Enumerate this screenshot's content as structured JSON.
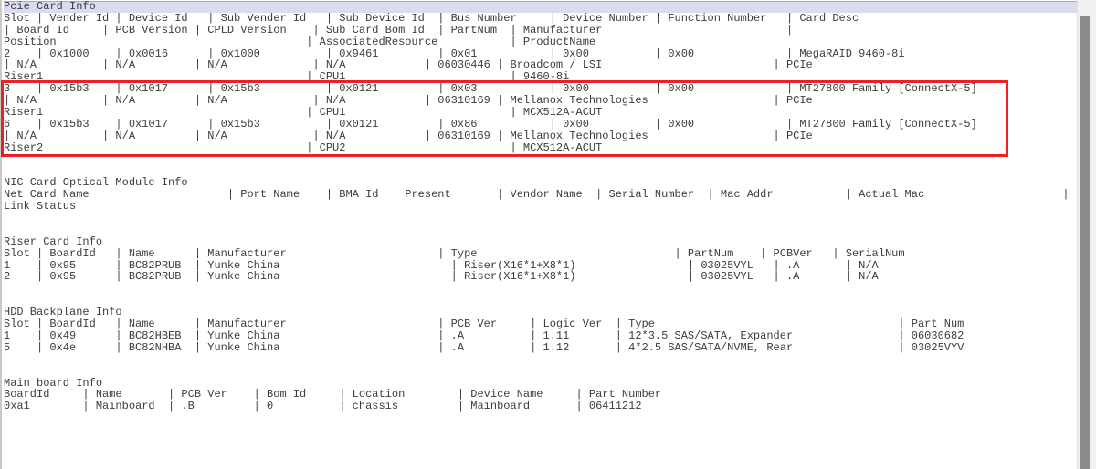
{
  "app": {
    "type": "terminal-hardware-inventory-output"
  },
  "colors": {
    "background": "#ffffff",
    "text": "#3c3c3c",
    "selection_highlight": "#dcdcf0",
    "selection_top_edge": "#a6a6c6",
    "annotation_red": "#ee2024",
    "scrollbar_track": "#f1f1f1",
    "scrollbar_thumb": "#8a8a8a",
    "border": "#c9c9c9"
  },
  "terminal": {
    "lines": [
      {
        "text": "Pcie Card Info",
        "highlighted": true
      },
      {
        "text": "Slot | Vender Id | Device Id   | Sub Vender Id   | Sub Device Id  | Bus Number     | Device Number | Function Number   | Card Desc"
      },
      {
        "text": "| Board Id     | PCB Version | CPLD Version    | Sub Card Bom Id  | PartNum  | Manufacturer                            |"
      },
      {
        "text": "Position                                      | AssociatedResource           | ProductName"
      },
      {
        "text": "2    | 0x1000    | 0x0016      | 0x1000          | 0x9461         | 0x01           | 0x00          | 0x00              | MegaRAID 9460-8i"
      },
      {
        "text": "| N/A          | N/A         | N/A             | N/A            | 06030446 | Broadcom / LSI                          | PCIe"
      },
      {
        "text": "Riser1                                        | CPU1                         | 9460-8i"
      },
      {
        "text": "3    | 0x15b3    | 0x1017      | 0x15b3          | 0x0121         | 0x03           | 0x00          | 0x00              | MT27800 Family [ConnectX-5]"
      },
      {
        "text": "| N/A          | N/A         | N/A             | N/A            | 06310169 | Mellanox Technologies                   | PCIe"
      },
      {
        "text": "Riser1                                        | CPU1                         | MCX512A-ACUT"
      },
      {
        "text": "6    | 0x15b3    | 0x1017      | 0x15b3          | 0x0121         | 0x86           | 0x00          | 0x00              | MT27800 Family [ConnectX-5]"
      },
      {
        "text": "| N/A          | N/A         | N/A             | N/A            | 06310169 | Mellanox Technologies                   | PCIe"
      },
      {
        "text": "Riser2                                        | CPU2                         | MCX512A-ACUT"
      },
      {
        "text": ""
      },
      {
        "text": ""
      },
      {
        "text": "NIC Card Optical Module Info"
      },
      {
        "text": "Net Card Name                     | Port Name    | BMA Id  | Present       | Vendor Name  | Serial Number  | Mac Addr           | Actual Mac                     |"
      },
      {
        "text": "Link Status"
      },
      {
        "text": ""
      },
      {
        "text": ""
      },
      {
        "text": "Riser Card Info"
      },
      {
        "text": "Slot | BoardId   | Name      | Manufacturer                       | Type                              | PartNum    | PCBVer   | SerialNum"
      },
      {
        "text": "1    | 0x95      | BC82PRUB  | Yunke China                          | Riser(X16*1+X8*1)                 | 03025VYL   | .A       | N/A"
      },
      {
        "text": "2    | 0x95      | BC82PRUB  | Yunke China                          | Riser(X16*1+X8*1)                 | 03025VYL   | .A       | N/A"
      },
      {
        "text": ""
      },
      {
        "text": ""
      },
      {
        "text": "HDD Backplane Info"
      },
      {
        "text": "Slot | BoardId   | Name      | Manufacturer                       | PCB Ver     | Logic Ver  | Type                                     | Part Num"
      },
      {
        "text": "1    | 0x49      | BC82HBEB  | Yunke China                        | .A          | 1.11       | 12*3.5 SAS/SATA, Expander                | 06030682"
      },
      {
        "text": "5    | 0x4e      | BC82NHBA  | Yunke China                        | .A          | 1.12       | 4*2.5 SAS/SATA/NVME, Rear                | 03025VYV"
      },
      {
        "text": ""
      },
      {
        "text": ""
      },
      {
        "text": "Main board Info"
      },
      {
        "text": "BoardId     | Name       | PCB Ver    | Bom Id     | Location        | Device Name     | Part Number"
      },
      {
        "text": "0xa1        | Mainboard  | .B         | 0          | chassis         | Mainboard       | 06411212"
      }
    ]
  },
  "tables": {
    "pcie_card_info": {
      "title": "Pcie Card Info",
      "header_rows": [
        [
          "Slot",
          "Vender Id",
          "Device Id",
          "Sub Vender Id",
          "Sub Device Id",
          "Bus Number",
          "Device Number",
          "Function Number",
          "Card Desc"
        ],
        [
          "Board Id",
          "PCB Version",
          "CPLD Version",
          "Sub Card Bom Id",
          "PartNum",
          "Manufacturer"
        ],
        [
          "Position",
          "AssociatedResource",
          "ProductName"
        ]
      ],
      "cards": [
        {
          "slot": "2",
          "vender_id": "0x1000",
          "device_id": "0x0016",
          "sub_vender_id": "0x1000",
          "sub_device_id": "0x9461",
          "bus_number": "0x01",
          "device_number": "0x00",
          "function_number": "0x00",
          "card_desc": "MegaRAID 9460-8i",
          "board_id": "N/A",
          "pcb_version": "N/A",
          "cpld_version": "N/A",
          "sub_card_bom_id": "N/A",
          "partnum": "06030446",
          "manufacturer": "Broadcom / LSI",
          "bus_type": "PCIe",
          "position": "Riser1",
          "associated_resource": "CPU1",
          "product_name": "9460-8i",
          "in_red_box": false
        },
        {
          "slot": "3",
          "vender_id": "0x15b3",
          "device_id": "0x1017",
          "sub_vender_id": "0x15b3",
          "sub_device_id": "0x0121",
          "bus_number": "0x03",
          "device_number": "0x00",
          "function_number": "0x00",
          "card_desc": "MT27800 Family [ConnectX-5]",
          "board_id": "N/A",
          "pcb_version": "N/A",
          "cpld_version": "N/A",
          "sub_card_bom_id": "N/A",
          "partnum": "06310169",
          "manufacturer": "Mellanox Technologies",
          "bus_type": "PCIe",
          "position": "Riser1",
          "associated_resource": "CPU1",
          "product_name": "MCX512A-ACUT",
          "in_red_box": true
        },
        {
          "slot": "6",
          "vender_id": "0x15b3",
          "device_id": "0x1017",
          "sub_vender_id": "0x15b3",
          "sub_device_id": "0x0121",
          "bus_number": "0x86",
          "device_number": "0x00",
          "function_number": "0x00",
          "card_desc": "MT27800 Family [ConnectX-5]",
          "board_id": "N/A",
          "pcb_version": "N/A",
          "cpld_version": "N/A",
          "sub_card_bom_id": "N/A",
          "partnum": "06310169",
          "manufacturer": "Mellanox Technologies",
          "bus_type": "PCIe",
          "position": "Riser2",
          "associated_resource": "CPU2",
          "product_name": "MCX512A-ACUT",
          "in_red_box": true
        }
      ]
    },
    "nic_card_optical_module_info": {
      "title": "NIC Card Optical Module Info",
      "columns": [
        "Net Card Name",
        "Port Name",
        "BMA Id",
        "Present",
        "Vendor Name",
        "Serial Number",
        "Mac Addr",
        "Actual Mac",
        "Link Status"
      ],
      "rows": []
    },
    "riser_card_info": {
      "title": "Riser Card Info",
      "columns": [
        "Slot",
        "BoardId",
        "Name",
        "Manufacturer",
        "Type",
        "PartNum",
        "PCBVer",
        "SerialNum"
      ],
      "rows": [
        [
          "1",
          "0x95",
          "BC82PRUB",
          "Yunke China",
          "Riser(X16*1+X8*1)",
          "03025VYL",
          ".A",
          "N/A"
        ],
        [
          "2",
          "0x95",
          "BC82PRUB",
          "Yunke China",
          "Riser(X16*1+X8*1)",
          "03025VYL",
          ".A",
          "N/A"
        ]
      ]
    },
    "hdd_backplane_info": {
      "title": "HDD Backplane Info",
      "columns": [
        "Slot",
        "BoardId",
        "Name",
        "Manufacturer",
        "PCB Ver",
        "Logic Ver",
        "Type",
        "Part Num"
      ],
      "rows": [
        [
          "1",
          "0x49",
          "BC82HBEB",
          "Yunke China",
          ".A",
          "1.11",
          "12*3.5 SAS/SATA, Expander",
          "06030682"
        ],
        [
          "5",
          "0x4e",
          "BC82NHBA",
          "Yunke China",
          ".A",
          "1.12",
          "4*2.5 SAS/SATA/NVME, Rear",
          "03025VYV"
        ]
      ]
    },
    "main_board_info": {
      "title": "Main board Info",
      "columns": [
        "BoardId",
        "Name",
        "PCB Ver",
        "Bom Id",
        "Location",
        "Device Name",
        "Part Number"
      ],
      "rows": [
        [
          "0xa1",
          "Mainboard",
          ".B",
          "0",
          "chassis",
          "Mainboard",
          "06411212"
        ]
      ]
    }
  }
}
